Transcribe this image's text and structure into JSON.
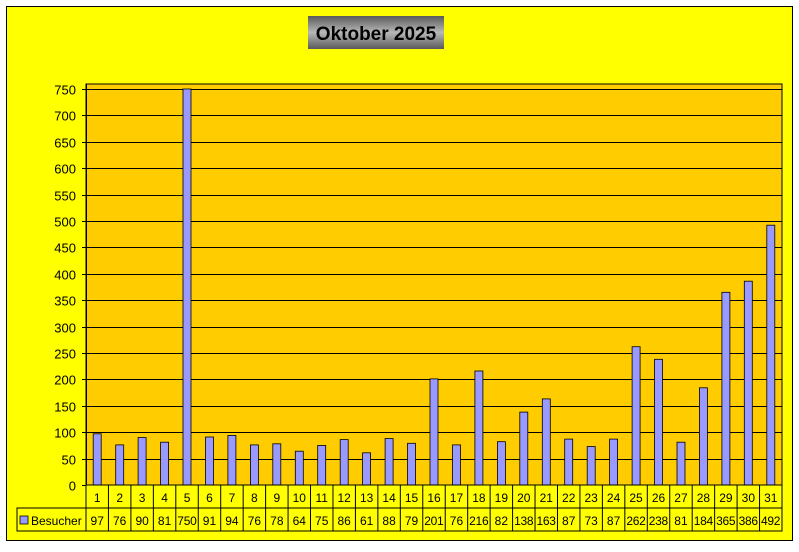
{
  "chart_data": {
    "type": "bar",
    "title": "Oktober 2025",
    "categories": [
      "1",
      "2",
      "3",
      "4",
      "5",
      "6",
      "7",
      "8",
      "9",
      "10",
      "11",
      "12",
      "13",
      "14",
      "15",
      "16",
      "17",
      "18",
      "19",
      "20",
      "21",
      "22",
      "23",
      "24",
      "25",
      "26",
      "27",
      "28",
      "29",
      "30",
      "31"
    ],
    "series": [
      {
        "name": "Besucher",
        "values": [
          97,
          76,
          90,
          81,
          750,
          91,
          94,
          76,
          78,
          64,
          75,
          86,
          61,
          88,
          79,
          201,
          76,
          216,
          82,
          138,
          163,
          87,
          73,
          87,
          262,
          238,
          81,
          184,
          365,
          386,
          492
        ]
      }
    ],
    "xlabel": "",
    "ylabel": "",
    "ylim": [
      0,
      750
    ],
    "yticks": [
      0,
      50,
      100,
      150,
      200,
      250,
      300,
      350,
      400,
      450,
      500,
      550,
      600,
      650,
      700,
      750
    ],
    "grid": true,
    "legend": "data-table",
    "colors": {
      "background": "#FFFF00",
      "plot_area": "#FFCC00",
      "bar": "#9999FF",
      "title_box": "#808080"
    }
  }
}
